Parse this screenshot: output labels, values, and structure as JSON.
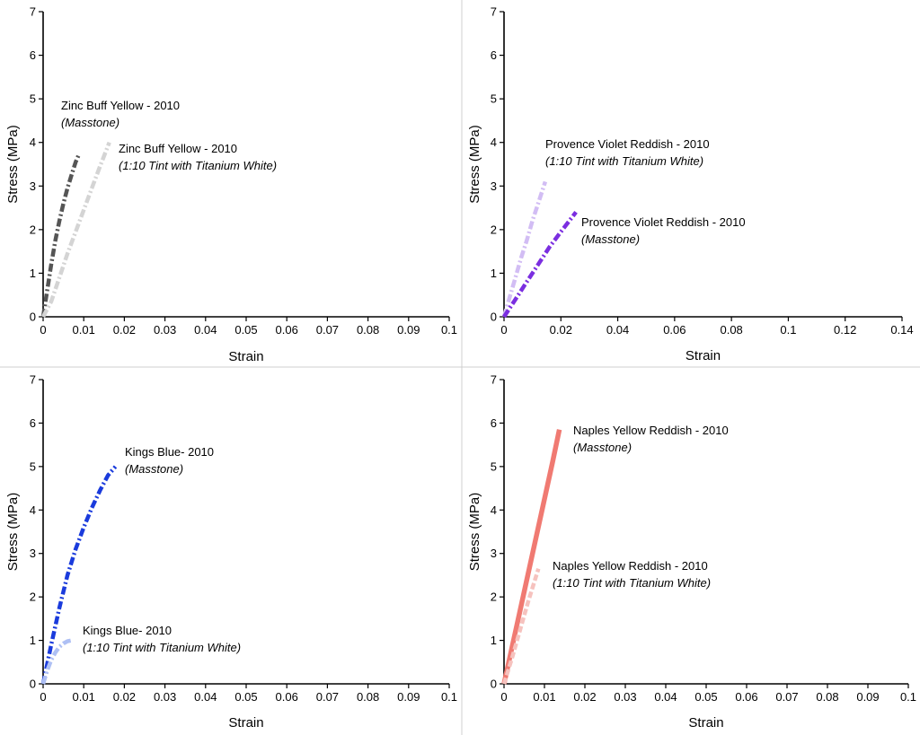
{
  "chart_data": [
    {
      "type": "line",
      "xlabel": "Strain",
      "ylabel": "Stress (MPa)",
      "xlim": [
        0,
        0.1
      ],
      "ylim": [
        0,
        7
      ],
      "xticks": [
        "0",
        "0.01",
        "0.02",
        "0.03",
        "0.04",
        "0.05",
        "0.06",
        "0.07",
        "0.08",
        "0.09",
        "0.1"
      ],
      "yticks": [
        "0",
        "1",
        "2",
        "3",
        "4",
        "5",
        "6",
        "7"
      ],
      "series": [
        {
          "color": "#555555",
          "dash": "dashdot",
          "x": [
            0,
            0.001,
            0.002,
            0.003,
            0.004,
            0.005,
            0.006,
            0.007,
            0.008,
            0.0087
          ],
          "y": [
            0,
            0.6,
            1.2,
            1.75,
            2.2,
            2.6,
            2.95,
            3.25,
            3.55,
            3.7
          ],
          "annotation": [
            "Zinc Buff Yellow - 2010",
            "(Masstone)"
          ]
        },
        {
          "color": "#d4d4d4",
          "dash": "dashdot",
          "x": [
            0,
            0.002,
            0.004,
            0.006,
            0.008,
            0.01,
            0.012,
            0.014,
            0.0163
          ],
          "y": [
            0,
            0.35,
            0.9,
            1.45,
            1.95,
            2.45,
            2.95,
            3.45,
            4.0
          ],
          "annotation": [
            "Zinc Buff Yellow - 2010",
            "(1:10 Tint with Titanium White)"
          ]
        }
      ]
    },
    {
      "type": "line",
      "xlabel": "Strain",
      "ylabel": "Stress (MPa)",
      "xlim": [
        0,
        0.14
      ],
      "ylim": [
        0,
        7
      ],
      "xticks": [
        "0",
        "0.02",
        "0.04",
        "0.06",
        "0.08",
        "0.1",
        "0.12",
        "0.14"
      ],
      "yticks": [
        "0",
        "1",
        "2",
        "3",
        "4",
        "5",
        "6",
        "7"
      ],
      "series": [
        {
          "color": "#d2bdf4",
          "dash": "dashdot",
          "x": [
            0,
            0.002,
            0.004,
            0.006,
            0.008,
            0.01,
            0.012,
            0.0145
          ],
          "y": [
            0,
            0.45,
            0.9,
            1.35,
            1.75,
            2.2,
            2.6,
            3.1
          ],
          "annotation": [
            "Provence Violet Reddish - 2010",
            "(1:10 Tint with Titanium White)"
          ]
        },
        {
          "color": "#7b2ee0",
          "dash": "dashdot",
          "x": [
            0,
            0.004,
            0.008,
            0.012,
            0.016,
            0.02,
            0.0253
          ],
          "y": [
            0,
            0.4,
            0.8,
            1.2,
            1.6,
            1.95,
            2.4
          ],
          "annotation": [
            "Provence Violet Reddish - 2010",
            "(Masstone)"
          ]
        }
      ]
    },
    {
      "type": "line",
      "xlabel": "Strain",
      "ylabel": "Stress (MPa)",
      "xlim": [
        0,
        0.1
      ],
      "ylim": [
        0,
        7
      ],
      "xticks": [
        "0",
        "0.01",
        "0.02",
        "0.03",
        "0.04",
        "0.05",
        "0.06",
        "0.07",
        "0.08",
        "0.09",
        "0.1"
      ],
      "yticks": [
        "0",
        "1",
        "2",
        "3",
        "4",
        "5",
        "6",
        "7"
      ],
      "series": [
        {
          "color": "#1a3bdc",
          "dash": "dashdot",
          "x": [
            0,
            0.001,
            0.002,
            0.004,
            0.006,
            0.008,
            0.01,
            0.012,
            0.014,
            0.016,
            0.0178
          ],
          "y": [
            0,
            0.45,
            0.9,
            1.75,
            2.5,
            3.1,
            3.6,
            4.05,
            4.45,
            4.8,
            5.0
          ],
          "annotation": [
            "Kings Blue- 2010",
            "(Masstone)"
          ]
        },
        {
          "color": "#aec0f4",
          "dash": "dashdot",
          "x": [
            0,
            0.001,
            0.002,
            0.003,
            0.004,
            0.005,
            0.006,
            0.007
          ],
          "y": [
            0,
            0.3,
            0.55,
            0.72,
            0.85,
            0.93,
            0.98,
            1.0
          ],
          "annotation": [
            "Kings Blue- 2010",
            "(1:10 Tint with Titanium White)"
          ]
        }
      ]
    },
    {
      "type": "line",
      "xlabel": "Strain",
      "ylabel": "Stress (MPa)",
      "xlim": [
        0,
        0.1
      ],
      "ylim": [
        0,
        7
      ],
      "xticks": [
        "0",
        "0.01",
        "0.02",
        "0.03",
        "0.04",
        "0.05",
        "0.06",
        "0.07",
        "0.08",
        "0.09",
        "0.1"
      ],
      "yticks": [
        "0",
        "1",
        "2",
        "3",
        "4",
        "5",
        "6",
        "7"
      ],
      "series": [
        {
          "color": "#f07a72",
          "dash": "solid",
          "x": [
            0,
            0.002,
            0.004,
            0.006,
            0.008,
            0.01,
            0.012,
            0.0137
          ],
          "y": [
            0,
            0.85,
            1.7,
            2.55,
            3.4,
            4.25,
            5.1,
            5.85
          ],
          "annotation": [
            "Naples Yellow Reddish - 2010",
            "(Masstone)"
          ]
        },
        {
          "color": "#f6c2be",
          "dash": "dash",
          "x": [
            0,
            0.002,
            0.004,
            0.006,
            0.0085
          ],
          "y": [
            0,
            0.6,
            1.25,
            1.9,
            2.65
          ],
          "annotation": [
            "Naples Yellow Reddish - 2010",
            "(1:10 Tint with Titanium White)"
          ]
        }
      ]
    }
  ]
}
